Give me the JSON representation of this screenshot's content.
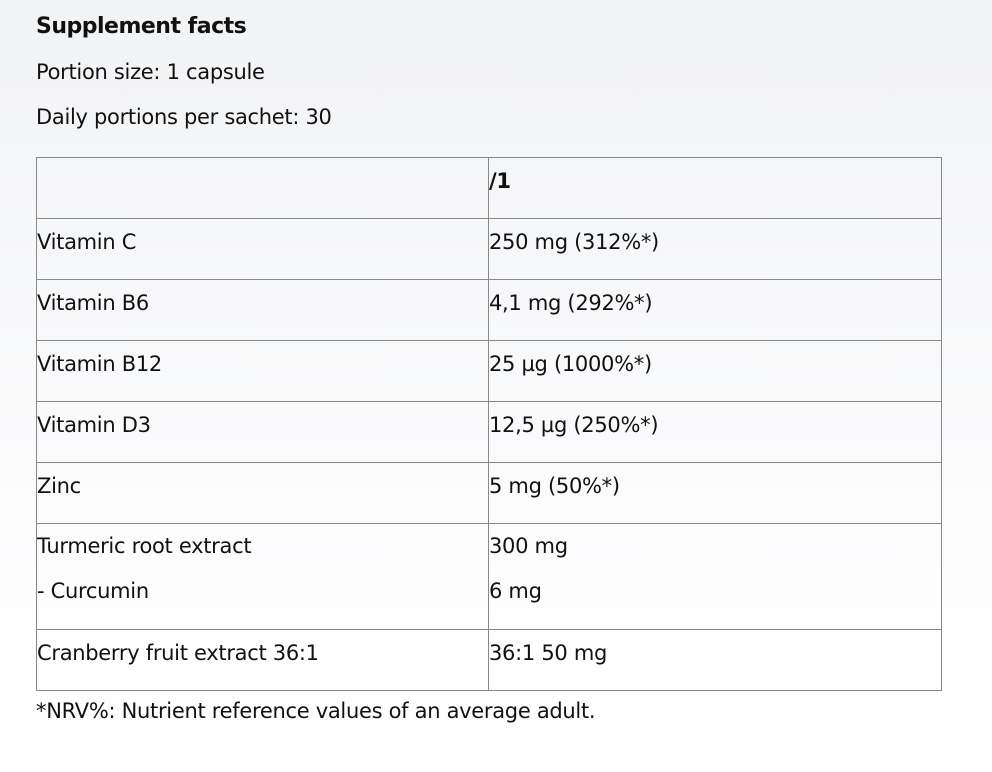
{
  "title": "Supplement facts",
  "portion_size": "Portion size: 1 capsule",
  "daily_portions": "Daily portions per sachet: 30",
  "table": {
    "header": [
      "",
      "/1"
    ],
    "rows": [
      {
        "name": "Vitamin C",
        "value": "250 mg (312%*)"
      },
      {
        "name": "Vitamin B6",
        "value": "4,1 mg (292%*)"
      },
      {
        "name": "Vitamin B12",
        "value": "25 µg (1000%*)"
      },
      {
        "name": "Vitamin D3",
        "value": "12,5 µg (250%*)"
      },
      {
        "name": "Zinc",
        "value": "5 mg (50%*)"
      }
    ],
    "turmeric": {
      "name": "Turmeric root extract",
      "value": "300 mg",
      "sub_name": "- Curcumin",
      "sub_value": "6 mg"
    },
    "cranberry": {
      "name": "Cranberry fruit extract 36:1",
      "value": "36:1 50 mg"
    }
  },
  "footnote": "*NRV%: Nutrient reference values of an average adult."
}
